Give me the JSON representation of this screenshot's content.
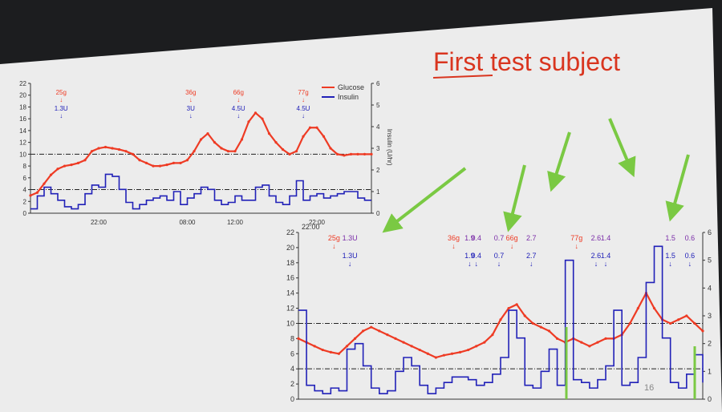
{
  "slide": {
    "title": "First test subject",
    "page_number": "16",
    "colors": {
      "glucose": "#ee3b24",
      "insulin": "#2121b8",
      "bolus_purple": "#7a2ca8",
      "arrow_green": "#7ac943",
      "title": "#d9351f",
      "slide_bg": "#ececec",
      "screen_bg": "#1c1d1f"
    }
  },
  "chart_data": [
    {
      "type": "line",
      "title": "",
      "legend": {
        "placement": "top-right",
        "entries": [
          "Glucose",
          "Insulin"
        ]
      },
      "xlabel": "",
      "ylabel": "",
      "y2label": "Insulin (U/hr)",
      "x_tick_labels": [
        "22:00",
        "08:00",
        "12:00",
        "22:00"
      ],
      "x_tick_positions": [
        20,
        46,
        60,
        84
      ],
      "xlim": [
        0,
        100
      ],
      "ylim": [
        0,
        22
      ],
      "y_ticks": [
        0,
        2,
        4,
        6,
        8,
        10,
        12,
        14,
        16,
        18,
        20,
        22
      ],
      "y2lim": [
        0,
        6
      ],
      "y2_ticks": [
        0,
        1,
        2,
        3,
        4,
        5,
        6
      ],
      "reference_lines": [
        4,
        10
      ],
      "y2_reference_lines": [
        1,
        2
      ],
      "series": [
        {
          "name": "Glucose",
          "axis": "left",
          "x": [
            0,
            2,
            4,
            6,
            8,
            10,
            12,
            14,
            16,
            18,
            20,
            22,
            24,
            26,
            28,
            30,
            32,
            34,
            36,
            38,
            40,
            42,
            44,
            46,
            48,
            50,
            52,
            54,
            56,
            58,
            60,
            62,
            64,
            66,
            68,
            70,
            72,
            74,
            76,
            78,
            80,
            82,
            84,
            86,
            88,
            90,
            92,
            94,
            96,
            98,
            100
          ],
          "y": [
            3,
            3.5,
            5,
            6.5,
            7.5,
            8,
            8.2,
            8.5,
            9,
            10.5,
            11,
            11.2,
            11,
            10.8,
            10.5,
            10,
            9,
            8.5,
            8,
            8,
            8.2,
            8.5,
            8.5,
            9,
            10.5,
            12.5,
            13.5,
            12,
            11,
            10.5,
            10.5,
            12.5,
            15.5,
            17,
            16,
            13.5,
            12,
            10.8,
            10,
            10.5,
            13,
            14.5,
            14.5,
            13,
            11,
            10,
            9.8,
            10,
            10,
            10,
            10
          ]
        },
        {
          "name": "Insulin",
          "axis": "right",
          "x": [
            0,
            2,
            4,
            6,
            8,
            10,
            12,
            14,
            16,
            18,
            20,
            22,
            24,
            26,
            28,
            30,
            32,
            34,
            36,
            38,
            40,
            42,
            44,
            46,
            48,
            50,
            52,
            54,
            56,
            58,
            60,
            62,
            64,
            66,
            68,
            70,
            72,
            74,
            76,
            78,
            80,
            82,
            84,
            86,
            88,
            90,
            92,
            94,
            96,
            98,
            100
          ],
          "y": [
            0.2,
            0.8,
            1.2,
            0.9,
            0.6,
            0.3,
            0.2,
            0.4,
            0.9,
            1.3,
            1.2,
            1.8,
            1.7,
            1.1,
            0.5,
            0.2,
            0.4,
            0.6,
            0.7,
            0.8,
            0.6,
            1,
            0.4,
            0.7,
            0.9,
            1.2,
            1.1,
            0.6,
            0.4,
            0.5,
            0.8,
            0.6,
            0.6,
            1.2,
            1.3,
            0.8,
            0.5,
            0.4,
            0.8,
            1.5,
            0.6,
            0.8,
            0.9,
            0.7,
            0.8,
            0.9,
            1,
            1,
            0.7,
            0.6,
            0.6
          ]
        }
      ],
      "annotations": [
        {
          "x": 9,
          "carbs": "25g",
          "dose": "1.3U"
        },
        {
          "x": 47,
          "carbs": "36g",
          "dose": "3U"
        },
        {
          "x": 61,
          "carbs": "66g",
          "dose": "4.5U"
        },
        {
          "x": 80,
          "carbs": "77g",
          "dose": "4.5U"
        }
      ]
    },
    {
      "type": "line",
      "title": "",
      "xlabel": "",
      "ylabel": "",
      "x_tick_labels": [
        "22:00"
      ],
      "xlim": [
        0,
        100
      ],
      "ylim": [
        0,
        22
      ],
      "y_ticks": [
        0,
        2,
        4,
        6,
        8,
        10,
        12,
        14,
        16,
        18,
        20,
        22
      ],
      "y2lim": [
        0,
        6
      ],
      "y2_ticks": [
        0,
        1,
        2,
        3,
        4,
        5,
        6
      ],
      "reference_lines": [
        4,
        10
      ],
      "y2_reference_lines": [
        1,
        2
      ],
      "series": [
        {
          "name": "Glucose",
          "axis": "left",
          "x": [
            0,
            2,
            4,
            6,
            8,
            10,
            12,
            14,
            16,
            18,
            20,
            22,
            24,
            26,
            28,
            30,
            32,
            34,
            36,
            38,
            40,
            42,
            44,
            46,
            48,
            50,
            52,
            54,
            56,
            58,
            60,
            62,
            64,
            66,
            68,
            70,
            72,
            74,
            76,
            78,
            80,
            82,
            84,
            86,
            88,
            90,
            92,
            94,
            96,
            98,
            100
          ],
          "y": [
            8,
            7.5,
            7,
            6.5,
            6.2,
            6,
            7,
            8,
            9,
            9.5,
            9,
            8.5,
            8,
            7.5,
            7,
            6.5,
            6,
            5.5,
            5.8,
            6,
            6.2,
            6.5,
            7,
            7.5,
            8.5,
            10.5,
            12,
            12.5,
            11,
            10,
            9.5,
            9,
            8,
            7.5,
            8,
            7.5,
            7,
            7.5,
            8,
            8,
            8.5,
            10,
            12,
            14,
            12,
            10.5,
            10,
            10.5,
            11,
            10,
            9
          ]
        },
        {
          "name": "Insulin",
          "axis": "right",
          "x": [
            0,
            2,
            4,
            6,
            8,
            10,
            12,
            14,
            16,
            18,
            20,
            22,
            24,
            26,
            28,
            30,
            32,
            34,
            36,
            38,
            40,
            42,
            44,
            46,
            48,
            50,
            52,
            54,
            56,
            58,
            60,
            62,
            64,
            66,
            68,
            70,
            72,
            74,
            76,
            78,
            80,
            82,
            84,
            86,
            88,
            90,
            92,
            94,
            96,
            98,
            100
          ],
          "y": [
            3.2,
            0.5,
            0.3,
            0.2,
            0.4,
            0.3,
            1.8,
            2,
            1.2,
            0.4,
            0.2,
            0.3,
            1,
            1.5,
            1.2,
            0.5,
            0.2,
            0.4,
            0.6,
            0.8,
            0.8,
            0.7,
            0.5,
            0.6,
            0.9,
            1.5,
            3.2,
            2.2,
            0.5,
            0.4,
            1,
            1.8,
            0.5,
            5,
            0.7,
            0.6,
            0.4,
            0.7,
            1.2,
            3.2,
            0.5,
            0.6,
            1.5,
            4.2,
            5.5,
            2.2,
            0.6,
            0.4,
            0.9,
            1.6,
            0.6
          ]
        }
      ],
      "annotations": [
        {
          "x": 11,
          "carbs": "25g",
          "dose": "1.3U",
          "dose_purple": "1.3U"
        },
        {
          "x": 48,
          "carbs": "36g",
          "dose": "1.9",
          "dose_purple": "1.9"
        },
        {
          "x": 55,
          "carbs": "",
          "dose": "0.4",
          "dose_purple": "0.4"
        },
        {
          "x": 62,
          "carbs": "",
          "dose": "0.7",
          "dose_purple": "0.7"
        },
        {
          "x": 66,
          "carbs": "66g",
          "dose": "",
          "dose_purple": ""
        },
        {
          "x": 72,
          "carbs": "",
          "dose": "2.7",
          "dose_purple": "2.7"
        },
        {
          "x": 86,
          "carbs": "77g",
          "dose": "",
          "dose_purple": ""
        },
        {
          "x": 92,
          "carbs": "",
          "dose": "2.6",
          "dose_purple": "2.6"
        },
        {
          "x": 95,
          "carbs": "",
          "dose": "1.4",
          "dose_purple": "1.4"
        },
        {
          "x": 115,
          "carbs": "",
          "dose": "1.5",
          "dose_purple": "1.5"
        },
        {
          "x": 121,
          "carbs": "",
          "dose": "0.6",
          "dose_purple": "0.6"
        }
      ]
    }
  ]
}
